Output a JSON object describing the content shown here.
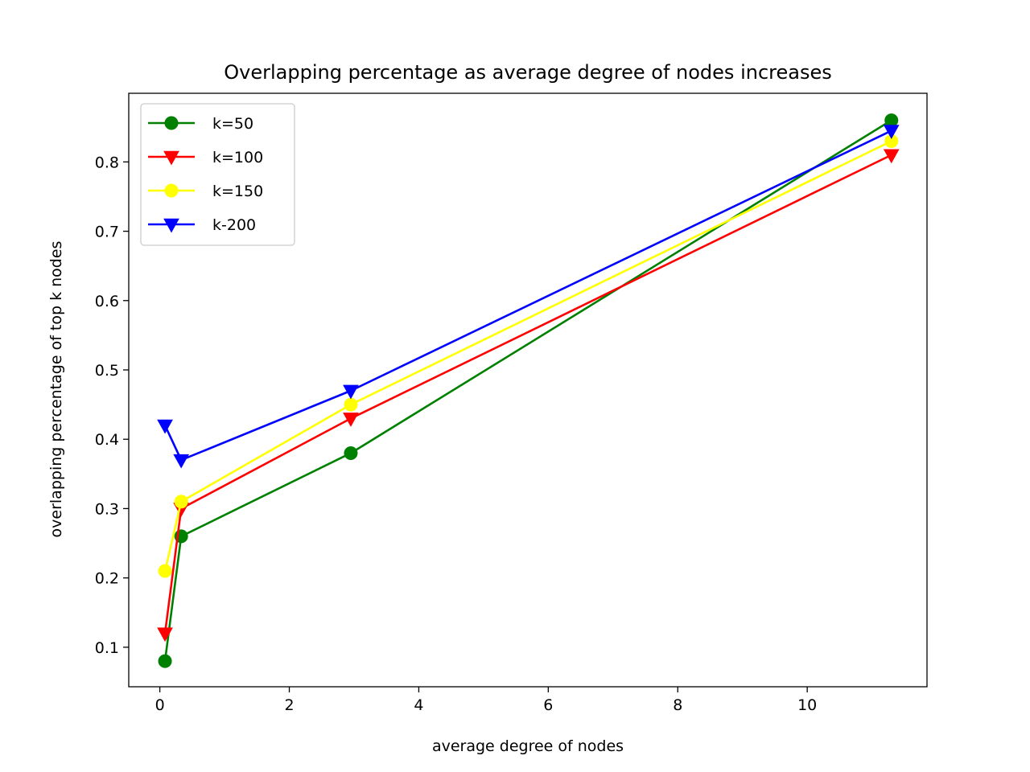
{
  "chart_data": {
    "type": "line",
    "title": "Overlapping percentage as average degree of nodes increases",
    "xlabel": "average degree of nodes",
    "ylabel": "overlapping percentage of top k nodes",
    "xlim": [
      -0.48,
      11.85
    ],
    "ylim": [
      0.043,
      0.899
    ],
    "xticks": [
      0,
      2,
      4,
      6,
      8,
      10
    ],
    "yticks": [
      0.1,
      0.2,
      0.3,
      0.4,
      0.5,
      0.6,
      0.7,
      0.8
    ],
    "grid": false,
    "legend_position": "upper-left",
    "series": [
      {
        "name": "k=50",
        "color": "#008000",
        "marker": "circle",
        "x": [
          0.08,
          0.33,
          2.95,
          11.3
        ],
        "y": [
          0.08,
          0.26,
          0.38,
          0.86
        ]
      },
      {
        "name": "k=100",
        "color": "#ff0000",
        "marker": "triangle-down",
        "x": [
          0.08,
          0.33,
          2.95,
          11.3
        ],
        "y": [
          0.12,
          0.3,
          0.43,
          0.81
        ]
      },
      {
        "name": "k=150",
        "color": "#ffff00",
        "marker": "circle",
        "x": [
          0.08,
          0.33,
          2.95,
          11.3
        ],
        "y": [
          0.21,
          0.31,
          0.45,
          0.83
        ]
      },
      {
        "name": "k-200",
        "color": "#0000ff",
        "marker": "triangle-down",
        "x": [
          0.08,
          0.33,
          2.95,
          11.3
        ],
        "y": [
          0.42,
          0.37,
          0.47,
          0.845
        ]
      }
    ]
  }
}
